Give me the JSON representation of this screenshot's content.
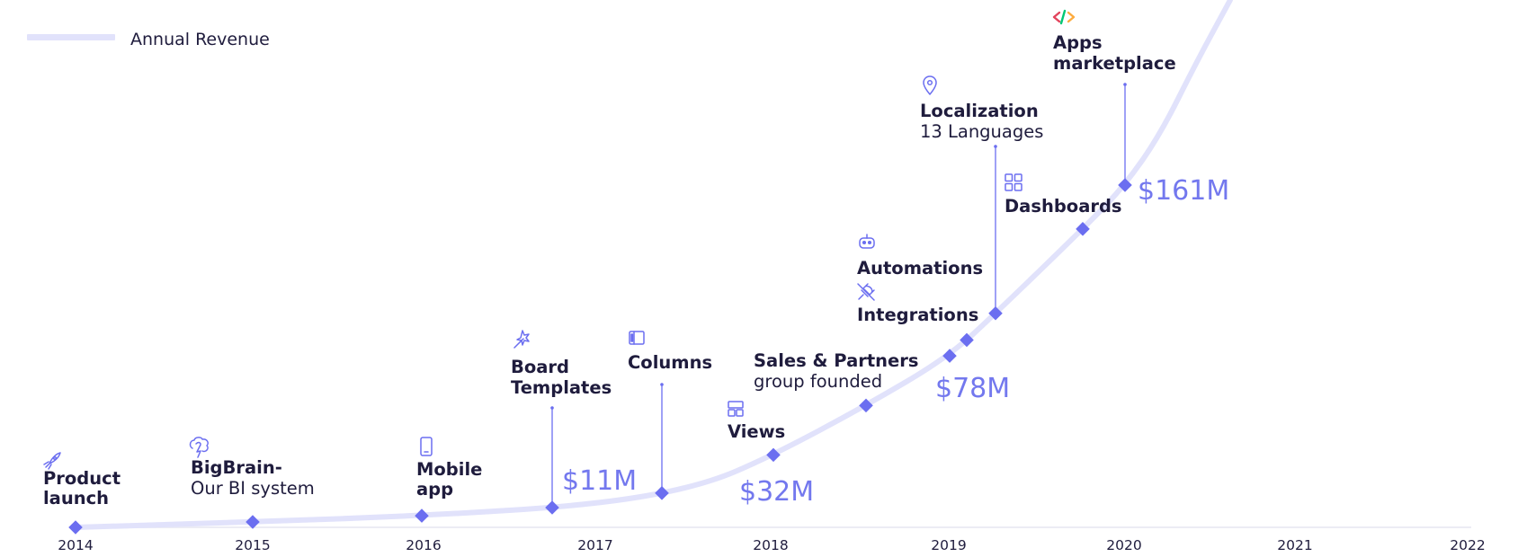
{
  "colors": {
    "curve": "#e1e2fb",
    "marker": "#6b6ef0",
    "text": "#1f1c3d",
    "revenue": "#7378ee",
    "axis": "#e8e8f2"
  },
  "chart_data": {
    "type": "line",
    "x_range": [
      2014,
      2022
    ],
    "xticks": [
      "2014",
      "2015",
      "2016",
      "2017",
      "2018",
      "2019",
      "2020",
      "2021",
      "2022"
    ],
    "legend": {
      "label": "Annual Revenue",
      "position": "top-left"
    },
    "series": [
      {
        "name": "Annual Revenue",
        "x": [
          2014,
          2015,
          2016,
          2017,
          2018,
          2019,
          2020,
          2020.6
        ],
        "y": [
          0,
          1.5,
          3.5,
          11,
          32,
          78,
          161,
          260
        ]
      }
    ],
    "revenue_labels": [
      {
        "text": "$11M",
        "x": 2017.0
      },
      {
        "text": "$32M",
        "x": 2018.0
      },
      {
        "text": "$78M",
        "x": 2019.0
      },
      {
        "text": "$161M",
        "x": 2020.0
      }
    ],
    "milestones": [
      {
        "id": "product-launch",
        "x": 2014.0,
        "icon": "rocket-icon",
        "title": [
          "Product",
          "launch"
        ],
        "subtitle": []
      },
      {
        "id": "bigbrain",
        "x": 2015.0,
        "icon": "brain-icon",
        "title": [
          "BigBrain-"
        ],
        "subtitle": [
          "Our BI system"
        ]
      },
      {
        "id": "mobile-app",
        "x": 2015.95,
        "icon": "phone-icon",
        "title": [
          "Mobile",
          "app"
        ],
        "subtitle": []
      },
      {
        "id": "board-templates",
        "x": 2016.75,
        "icon": "magic-wand-icon",
        "title": [
          "Board",
          "Templates"
        ],
        "subtitle": [],
        "stem": true
      },
      {
        "id": "columns",
        "x": 2017.38,
        "icon": "columns-icon",
        "title": [
          "Columns"
        ],
        "subtitle": [],
        "stem": true
      },
      {
        "id": "views",
        "x": 2018.0,
        "icon": "layout-icon",
        "title": [
          "Views"
        ],
        "subtitle": []
      },
      {
        "id": "sales-partners",
        "x": 2018.55,
        "icon": "",
        "title": [
          "Sales & Partners"
        ],
        "subtitle": [
          "group founded"
        ]
      },
      {
        "id": "integrations",
        "x": 2019.0,
        "icon": "plug-icon",
        "title": [
          "Integrations"
        ],
        "subtitle": []
      },
      {
        "id": "automations",
        "x": 2019.1,
        "icon": "robot-icon",
        "title": [
          "Automations"
        ],
        "subtitle": []
      },
      {
        "id": "localization",
        "x": 2019.27,
        "icon": "location-pin-icon",
        "title": [
          "Localization"
        ],
        "subtitle": [
          "13 Languages"
        ],
        "stem": true
      },
      {
        "id": "dashboards",
        "x": 2019.78,
        "icon": "dashboard-grid-icon",
        "title": [
          "Dashboards"
        ],
        "subtitle": []
      },
      {
        "id": "apps-marketplace",
        "x": 2020.0,
        "icon": "code-icon",
        "title": [
          "Apps",
          "marketplace"
        ],
        "subtitle": [],
        "stem": true
      }
    ]
  }
}
